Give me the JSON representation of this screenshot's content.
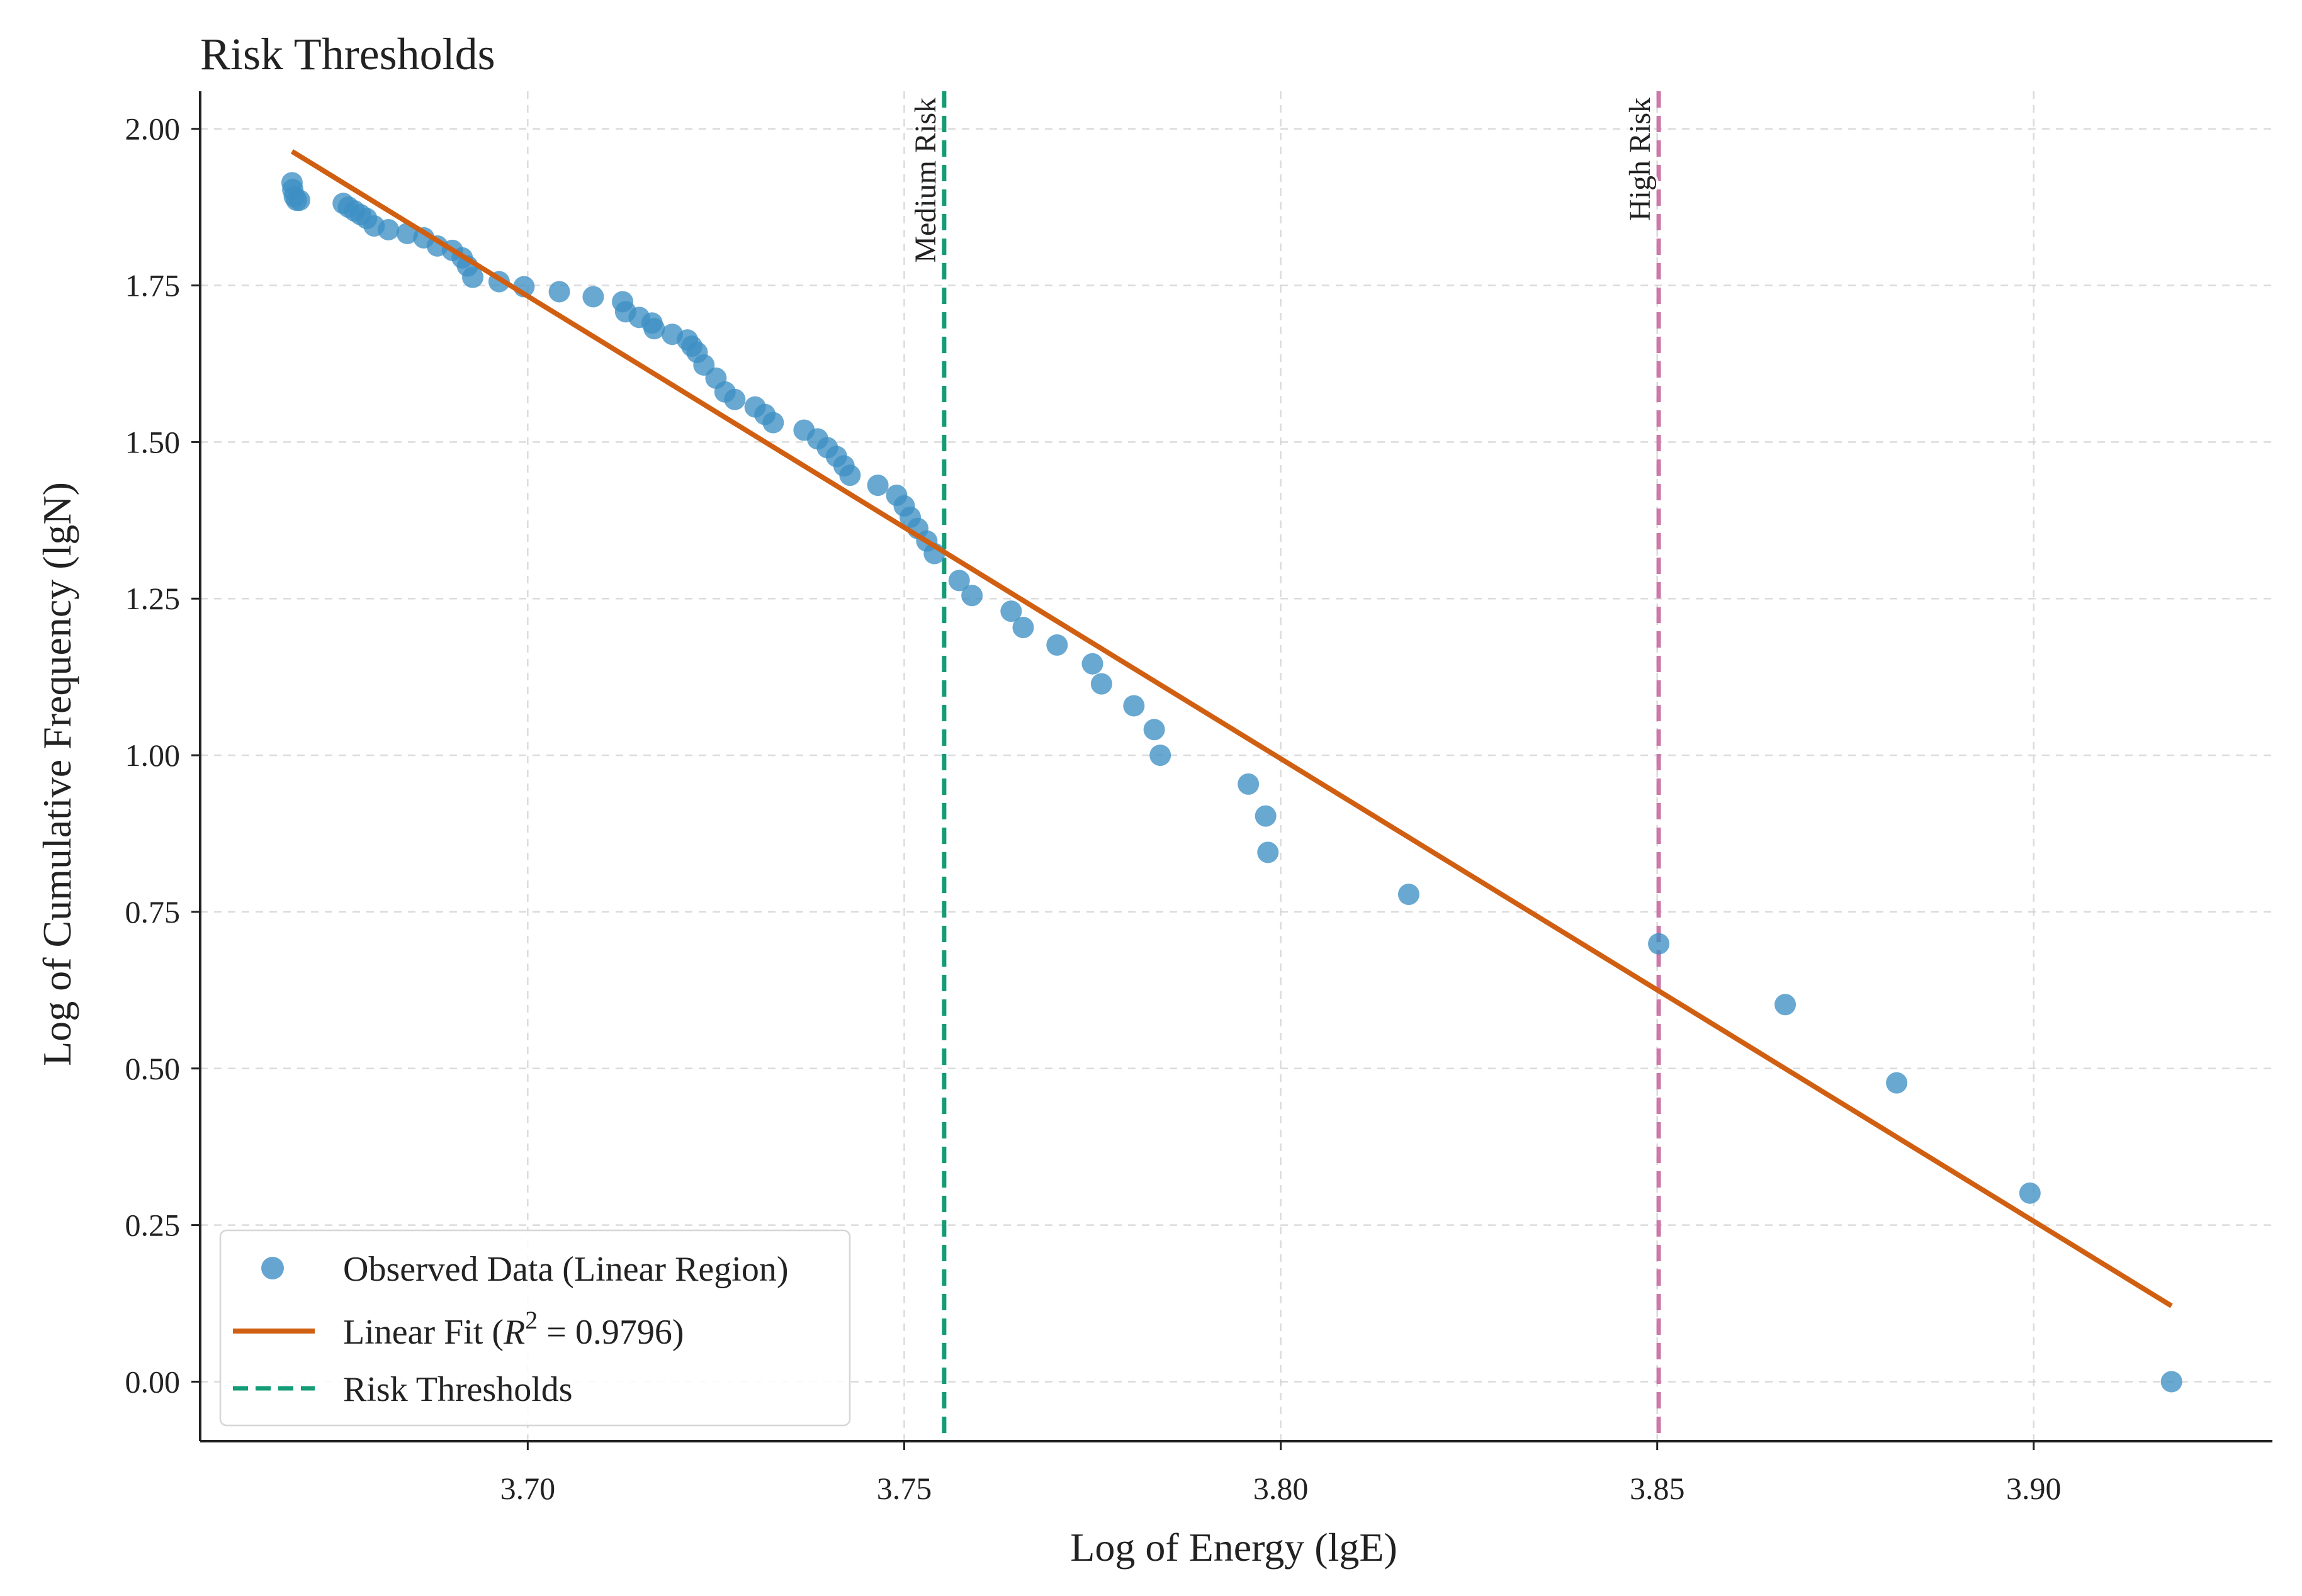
{
  "chart_data": {
    "type": "scatter",
    "title": "Risk Thresholds",
    "xlabel": "Log of Energy (lgE)",
    "ylabel": "Log of Cumulative Frequency (lgN)",
    "xlim": [
      3.6565,
      3.9317
    ],
    "ylim": [
      -0.095,
      2.06
    ],
    "xticks": [
      3.7,
      3.75,
      3.8,
      3.85,
      3.9
    ],
    "yticks": [
      0.0,
      0.25,
      0.5,
      0.75,
      1.0,
      1.25,
      1.5,
      1.75,
      2.0
    ],
    "xtick_labels": [
      "3.70",
      "3.75",
      "3.80",
      "3.85",
      "3.90"
    ],
    "ytick_labels": [
      "0.00",
      "0.25",
      "0.50",
      "0.75",
      "1.00",
      "1.25",
      "1.50",
      "1.75",
      "2.00"
    ],
    "grid": true,
    "legend_position": "lower-left",
    "series": [
      {
        "name": "Observed Data (Linear Region)",
        "kind": "scatter",
        "color": "#3e8fc4",
        "x": [
          3.6687,
          3.6688,
          3.669,
          3.6693,
          3.6697,
          3.6755,
          3.6762,
          3.677,
          3.6778,
          3.6786,
          3.6796,
          3.6815,
          3.684,
          3.6862,
          3.688,
          3.69,
          3.6913,
          3.692,
          3.6927,
          3.6962,
          3.6995,
          3.7042,
          3.7087,
          3.7126,
          3.713,
          3.7148,
          3.7165,
          3.7168,
          3.7192,
          3.7212,
          3.7218,
          3.7225,
          3.7234,
          3.725,
          3.7262,
          3.7275,
          3.7302,
          3.7315,
          3.7326,
          3.7367,
          3.7385,
          3.7398,
          3.741,
          3.742,
          3.7428,
          3.7465,
          3.749,
          3.75,
          3.7508,
          3.7518,
          3.753,
          3.754,
          3.7573,
          3.759,
          3.7642,
          3.7658,
          3.7703,
          3.775,
          3.7762,
          3.7805,
          3.7832,
          3.784,
          3.7957,
          3.798,
          3.7983,
          3.817,
          3.8502,
          3.867,
          3.8818,
          3.8995,
          3.9183
        ],
        "y": [
          1.914,
          1.903,
          1.892,
          1.886,
          1.886,
          1.881,
          1.875,
          1.869,
          1.863,
          1.857,
          1.845,
          1.839,
          1.833,
          1.826,
          1.813,
          1.806,
          1.794,
          1.781,
          1.763,
          1.756,
          1.748,
          1.74,
          1.732,
          1.724,
          1.708,
          1.699,
          1.69,
          1.681,
          1.672,
          1.663,
          1.653,
          1.643,
          1.623,
          1.602,
          1.58,
          1.568,
          1.556,
          1.544,
          1.531,
          1.519,
          1.505,
          1.491,
          1.477,
          1.462,
          1.447,
          1.431,
          1.415,
          1.398,
          1.38,
          1.362,
          1.342,
          1.322,
          1.279,
          1.255,
          1.23,
          1.204,
          1.176,
          1.146,
          1.114,
          1.079,
          1.041,
          1.0,
          0.954,
          0.903,
          0.845,
          0.778,
          0.699,
          0.602,
          0.477,
          0.301,
          0.0
        ]
      },
      {
        "name": "Linear Fit ($R^2$ = 0.9796)",
        "legend_prefix": "Linear Fit (",
        "legend_r": "R",
        "legend_sup": "2",
        "legend_suffix": " = 0.9796)",
        "kind": "line",
        "color": "#d05f12",
        "x": [
          3.6687,
          3.9183
        ],
        "y": [
          1.964,
          0.121
        ]
      },
      {
        "name": "Risk Thresholds",
        "kind": "vline",
        "lines": [
          {
            "x": 3.7553,
            "label": "Medium Risk",
            "color": "#139c76"
          },
          {
            "x": 3.8502,
            "label": "High Risk",
            "color": "#cc78a8"
          }
        ]
      }
    ]
  }
}
